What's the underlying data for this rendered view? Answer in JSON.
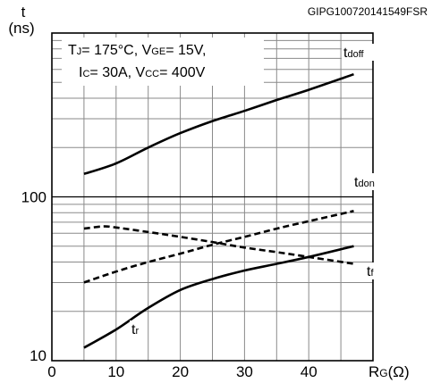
{
  "figure_id": "GIPG100720141549FSR",
  "chart_data": {
    "type": "line",
    "y_unit_symbol": "t",
    "y_unit": "(ns)",
    "x_label_main": "R",
    "x_label_sub": "G",
    "x_label_unit": "(Ω)",
    "x_range": [
      0,
      50
    ],
    "x_ticks": [
      0,
      10,
      20,
      30,
      40
    ],
    "x_tick_labels": [
      "0",
      "10",
      "20",
      "30",
      "40"
    ],
    "y_scale": "log",
    "y_range": [
      10,
      1000
    ],
    "y_tick_labels": [
      {
        "value": 10,
        "label": "10"
      },
      {
        "value": 100,
        "label": "100"
      }
    ],
    "grid": true,
    "conditions": [
      {
        "parts": [
          [
            "T",
            "n"
          ],
          [
            "J",
            "s"
          ],
          [
            "= 175°C, V",
            "n"
          ],
          [
            "GE",
            "s"
          ],
          [
            "= 15V,",
            "n"
          ]
        ]
      },
      {
        "parts": [
          [
            "I",
            "n"
          ],
          [
            "C",
            "s"
          ],
          [
            "= 30A, V",
            "n"
          ],
          [
            "CC",
            "s"
          ],
          [
            "= 400V",
            "n"
          ]
        ]
      }
    ],
    "series": [
      {
        "name": "tdoff",
        "label_main": "t",
        "label_sub": "doff",
        "dash": "solid",
        "x": [
          5,
          10,
          15,
          20,
          25,
          30,
          35,
          40,
          47
        ],
        "y": [
          138,
          160,
          200,
          245,
          290,
          335,
          390,
          450,
          560
        ]
      },
      {
        "name": "tdon",
        "label_main": "t",
        "label_sub": "don",
        "dash": "dashed",
        "x": [
          5,
          10,
          15,
          20,
          25,
          30,
          35,
          40,
          47
        ],
        "y": [
          30,
          35,
          40,
          45,
          51,
          57,
          64,
          71,
          82
        ]
      },
      {
        "name": "tf",
        "label_main": "t",
        "label_sub": "f",
        "dash": "dashed",
        "x": [
          5,
          8,
          10,
          15,
          20,
          25,
          30,
          35,
          40,
          47
        ],
        "y": [
          64,
          66,
          65,
          61,
          57,
          53,
          49,
          46,
          43,
          39
        ]
      },
      {
        "name": "tr",
        "label_main": "t",
        "label_sub": "r",
        "dash": "solid",
        "x": [
          5,
          10,
          15,
          20,
          25,
          30,
          35,
          40,
          47
        ],
        "y": [
          12,
          15.5,
          21,
          27,
          31.5,
          35.5,
          39,
          43,
          50
        ]
      }
    ]
  }
}
